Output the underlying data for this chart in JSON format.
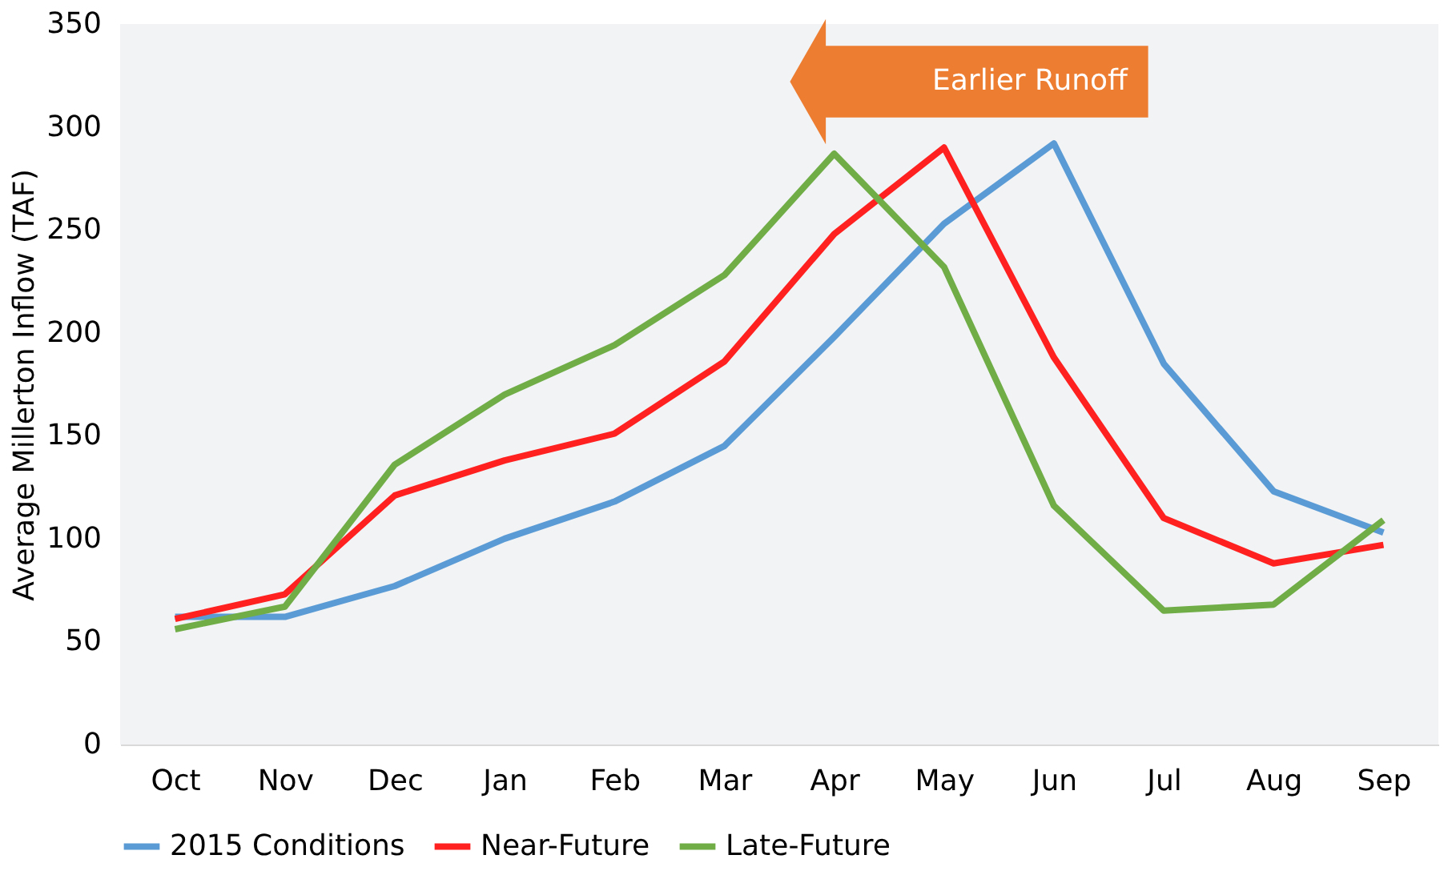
{
  "chart_data": {
    "type": "line",
    "ylabel": "Average Millerton Inflow (TAF)",
    "categories": [
      "Oct",
      "Nov",
      "Dec",
      "Jan",
      "Feb",
      "Mar",
      "Apr",
      "May",
      "Jun",
      "Jul",
      "Aug",
      "Sep"
    ],
    "series": [
      {
        "name": "2015 Conditions",
        "color": "#5b9bd5",
        "values": [
          62,
          62,
          77,
          100,
          118,
          145,
          198,
          253,
          292,
          185,
          123,
          103
        ]
      },
      {
        "name": "Near-Future",
        "color": "#ff2020",
        "values": [
          61,
          73,
          121,
          138,
          151,
          186,
          248,
          290,
          188,
          110,
          88,
          97
        ]
      },
      {
        "name": "Late-Future",
        "color": "#70ad47",
        "values": [
          56,
          67,
          136,
          170,
          194,
          228,
          287,
          232,
          116,
          65,
          68,
          109
        ]
      }
    ],
    "ylim": [
      0,
      350
    ],
    "yticks": [
      0,
      50,
      100,
      150,
      200,
      250,
      300,
      350
    ],
    "grid": false,
    "legend": "bottom",
    "line_style": "solid",
    "annotations": [
      "Earlier Runoff"
    ]
  }
}
